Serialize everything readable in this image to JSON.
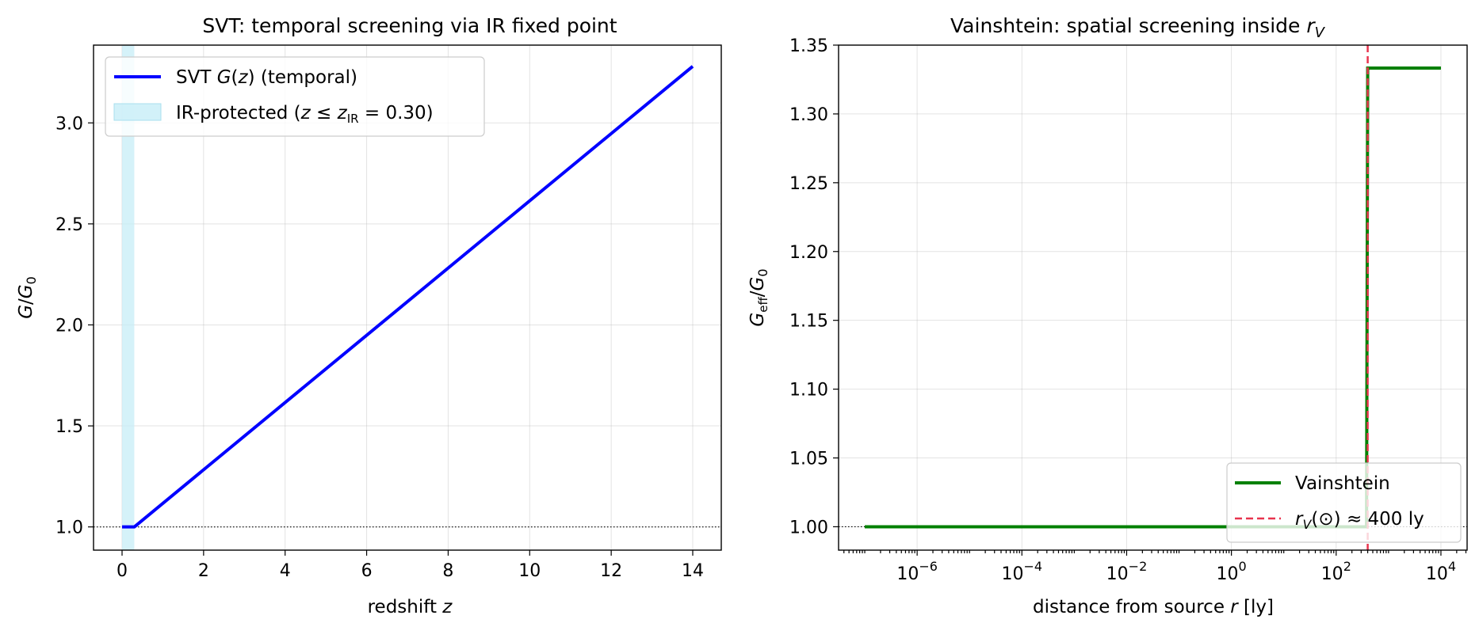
{
  "chart_data": [
    {
      "type": "line",
      "title": "SVT: temporal screening via IR fixed point",
      "xlabel": "redshift z",
      "ylabel": "G/G₀",
      "xlim": [
        -0.7,
        14.7
      ],
      "ylim": [
        0.885,
        3.385
      ],
      "xticks": [
        0,
        2,
        4,
        6,
        8,
        10,
        12,
        14
      ],
      "yticks": [
        1.0,
        1.5,
        2.0,
        2.5,
        3.0
      ],
      "xtick_labels": [
        "0",
        "2",
        "4",
        "6",
        "8",
        "10",
        "12",
        "14"
      ],
      "ytick_labels": [
        "1.0",
        "1.5",
        "2.0",
        "2.5",
        "3.0"
      ],
      "grid": true,
      "legend_position": "top-left",
      "series": [
        {
          "name": "SVT G(z) (temporal)",
          "color": "#0000ff",
          "x": [
            0,
            0.3,
            14.0
          ],
          "y": [
            1.0,
            1.0,
            3.28
          ]
        }
      ],
      "shaded_region": {
        "name": "IR-protected (z ≤ z_IR = 0.30)",
        "x": [
          0,
          0.3
        ],
        "color": "#c7eef7"
      },
      "reference_line": {
        "y": 1.0,
        "style": "dotted",
        "color": "#000000"
      }
    },
    {
      "type": "line",
      "title": "Vainshtein: spatial screening inside r_V",
      "xlabel": "distance from source r  [ly]",
      "ylabel": "G_eff/G₀",
      "xscale": "log",
      "xlim_log10": [
        -7.5,
        4.5
      ],
      "ylim": [
        0.983,
        1.35
      ],
      "xticks_log10": [
        -6,
        -4,
        -2,
        0,
        2,
        4
      ],
      "xtick_labels": [
        {
          "base": "10",
          "exp": "−6"
        },
        {
          "base": "10",
          "exp": "−4"
        },
        {
          "base": "10",
          "exp": "−2"
        },
        {
          "base": "10",
          "exp": "0"
        },
        {
          "base": "10",
          "exp": "2"
        },
        {
          "base": "10",
          "exp": "4"
        }
      ],
      "yticks": [
        1.0,
        1.05,
        1.1,
        1.15,
        1.2,
        1.25,
        1.3,
        1.35
      ],
      "ytick_labels": [
        "1.00",
        "1.05",
        "1.10",
        "1.15",
        "1.20",
        "1.25",
        "1.30",
        "1.35"
      ],
      "grid": true,
      "legend_position": "bottom-right",
      "series": [
        {
          "name": "Vainshtein",
          "color": "#008000",
          "x": [
            1e-07,
            380,
            400,
            10000
          ],
          "y": [
            1.0,
            1.0,
            1.3333,
            1.3333
          ]
        }
      ],
      "vline": {
        "name": "r_V(⊙) ≈ 400 ly",
        "x": 400,
        "color": "#e8344e",
        "style": "dashed"
      },
      "reference_line": {
        "y": 1.0,
        "style": "dotted",
        "color": "#000000"
      }
    }
  ]
}
